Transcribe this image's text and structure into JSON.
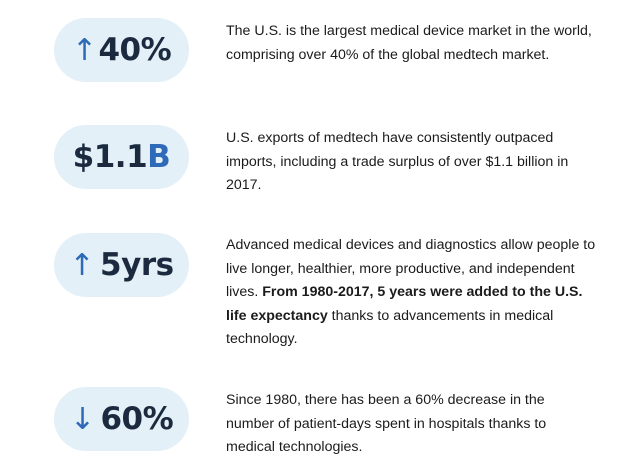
{
  "stats": [
    {
      "arrow": "↑",
      "value": "40%",
      "suffix": "",
      "pill_color": "#e3f0f7",
      "description": "The U.S. is the largest medical device market in the world, comprising over 40% of the global medtech market."
    },
    {
      "arrow": "",
      "value": "$1.1",
      "suffix": "B",
      "pill_color": "#e3f0f7",
      "description": "U.S. exports of medtech have consistently outpaced imports, including a trade surplus of over $1.1 billion in 2017."
    },
    {
      "arrow": "↑",
      "value": "5yrs",
      "suffix": "",
      "pill_color": "#e3f0f7",
      "description_pre": "Advanced medical devices and diagnostics allow people to live longer, healthier, more productive, and independent lives. ",
      "description_bold": "From 1980-2017, 5 years were added to the U.S. life expectancy",
      "description_post": " thanks to advancements in medical technology."
    },
    {
      "arrow": "↓",
      "value": "60%",
      "suffix": "",
      "pill_color": "#e3f0f7",
      "description": "Since 1980, there has been a 60% decrease in the number of patient-days spent in hospitals thanks to medical technologies."
    }
  ],
  "colors": {
    "accent": "#2e6ab8",
    "text_dark": "#1b2a3f",
    "pill_bg": "#e3f0f7"
  }
}
